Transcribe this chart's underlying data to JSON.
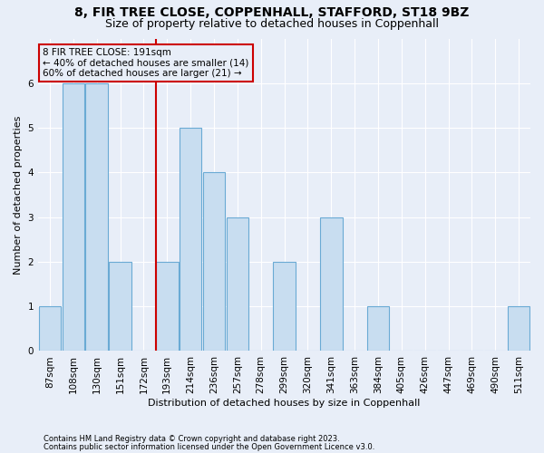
{
  "title": "8, FIR TREE CLOSE, COPPENHALL, STAFFORD, ST18 9BZ",
  "subtitle": "Size of property relative to detached houses in Coppenhall",
  "xlabel": "Distribution of detached houses by size in Coppenhall",
  "ylabel": "Number of detached properties",
  "categories": [
    "87sqm",
    "108sqm",
    "130sqm",
    "151sqm",
    "172sqm",
    "193sqm",
    "214sqm",
    "236sqm",
    "257sqm",
    "278sqm",
    "299sqm",
    "320sqm",
    "341sqm",
    "363sqm",
    "384sqm",
    "405sqm",
    "426sqm",
    "447sqm",
    "469sqm",
    "490sqm",
    "511sqm"
  ],
  "values": [
    1,
    6,
    6,
    2,
    0,
    2,
    5,
    4,
    3,
    0,
    2,
    0,
    3,
    0,
    1,
    0,
    0,
    0,
    0,
    0,
    1
  ],
  "bar_color": "#c8ddf0",
  "bar_edge_color": "#6aaad4",
  "property_line_x": 4.525,
  "property_label": "8 FIR TREE CLOSE: 191sqm",
  "smaller_pct": "40% of detached houses are smaller (14)",
  "larger_pct": "60% of detached houses are larger (21)",
  "annotation_box_color": "#cc0000",
  "ylim": [
    0,
    7
  ],
  "yticks": [
    0,
    1,
    2,
    3,
    4,
    5,
    6
  ],
  "footer1": "Contains HM Land Registry data © Crown copyright and database right 2023.",
  "footer2": "Contains public sector information licensed under the Open Government Licence v3.0.",
  "background_color": "#e8eef8",
  "plot_bg_color": "#e8eef8",
  "grid_color": "#ffffff",
  "title_fontsize": 10,
  "subtitle_fontsize": 9,
  "axis_label_fontsize": 8,
  "tick_fontsize": 7.5,
  "footer_fontsize": 6,
  "annot_fontsize": 7.5
}
